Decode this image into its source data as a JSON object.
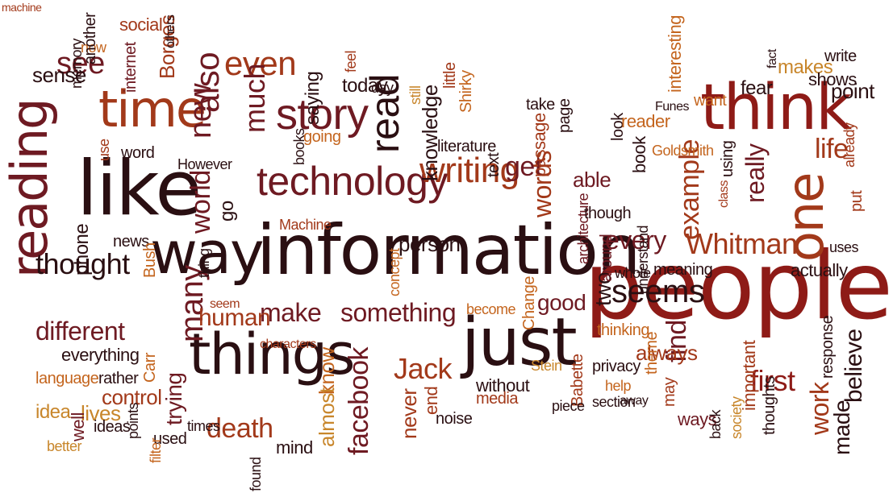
{
  "palette": {
    "dark": "#2a0f12",
    "maroon": "#6e1a22",
    "red": "#8e1b17",
    "rust": "#a2391a",
    "orange": "#c4651e",
    "tan": "#c8862b"
  },
  "words": [
    {
      "text": "information",
      "color": "dark"
    },
    {
      "text": "people",
      "color": "red"
    },
    {
      "text": "like",
      "color": "dark"
    },
    {
      "text": "way",
      "color": "dark"
    },
    {
      "text": "think",
      "color": "red"
    },
    {
      "text": "things",
      "color": "dark"
    },
    {
      "text": "reading",
      "color": "maroon"
    },
    {
      "text": "time",
      "color": "rust"
    },
    {
      "text": "just",
      "color": "dark"
    },
    {
      "text": "one",
      "color": "rust"
    },
    {
      "text": "story",
      "color": "maroon"
    },
    {
      "text": "technology",
      "color": "maroon"
    },
    {
      "text": "read",
      "color": "dark"
    },
    {
      "text": "even",
      "color": "rust"
    },
    {
      "text": "also",
      "color": "maroon"
    },
    {
      "text": "new",
      "color": "maroon"
    },
    {
      "text": "world",
      "color": "maroon"
    },
    {
      "text": "much",
      "color": "maroon"
    },
    {
      "text": "see",
      "color": "maroon"
    },
    {
      "text": "writing",
      "color": "rust"
    },
    {
      "text": "words",
      "color": "rust"
    },
    {
      "text": "get",
      "color": "maroon"
    },
    {
      "text": "life",
      "color": "rust"
    },
    {
      "text": "Whitman",
      "color": "rust"
    },
    {
      "text": "example",
      "color": "rust"
    },
    {
      "text": "really",
      "color": "maroon"
    },
    {
      "text": "seems",
      "color": "dark"
    },
    {
      "text": "every",
      "color": "maroon"
    },
    {
      "text": "many",
      "color": "maroon"
    },
    {
      "text": "thought",
      "color": "dark"
    },
    {
      "text": "make",
      "color": "maroon"
    },
    {
      "text": "something",
      "color": "maroon"
    },
    {
      "text": "human",
      "color": "rust"
    },
    {
      "text": "death",
      "color": "rust"
    },
    {
      "text": "different",
      "color": "maroon"
    },
    {
      "text": "facebook",
      "color": "maroon"
    },
    {
      "text": "Jack",
      "color": "rust"
    },
    {
      "text": "first",
      "color": "red"
    },
    {
      "text": "find",
      "color": "maroon"
    },
    {
      "text": "work",
      "color": "rust"
    },
    {
      "text": "believe",
      "color": "dark"
    },
    {
      "text": "made",
      "color": "dark"
    },
    {
      "text": "fear",
      "color": "dark"
    },
    {
      "text": "point",
      "color": "dark"
    },
    {
      "text": "makes",
      "color": "tan"
    },
    {
      "text": "two",
      "color": "dark"
    },
    {
      "text": "good",
      "color": "maroon"
    },
    {
      "text": "always",
      "color": "rust"
    },
    {
      "text": "know",
      "color": "orange"
    },
    {
      "text": "almost",
      "color": "tan"
    },
    {
      "text": "never",
      "color": "rust"
    },
    {
      "text": "end",
      "color": "rust"
    },
    {
      "text": "noise",
      "color": "dark"
    },
    {
      "text": "without",
      "color": "dark"
    },
    {
      "text": "media",
      "color": "rust"
    },
    {
      "text": "trying",
      "color": "maroon"
    },
    {
      "text": "control",
      "color": "rust"
    },
    {
      "text": "lives",
      "color": "tan"
    },
    {
      "text": "idea",
      "color": "tan"
    },
    {
      "text": "ideas",
      "color": "dark"
    },
    {
      "text": "used",
      "color": "dark"
    },
    {
      "text": "mind",
      "color": "dark"
    },
    {
      "text": "found",
      "color": "dark"
    },
    {
      "text": "well",
      "color": "maroon"
    },
    {
      "text": "better",
      "color": "tan"
    },
    {
      "text": "filter",
      "color": "orange"
    },
    {
      "text": "points",
      "color": "dark"
    },
    {
      "text": "times",
      "color": "dark"
    },
    {
      "text": "everything",
      "color": "dark"
    },
    {
      "text": "language",
      "color": "orange"
    },
    {
      "text": "rather",
      "color": "dark"
    },
    {
      "text": "Carr",
      "color": "orange"
    },
    {
      "text": "characters",
      "color": "rust"
    },
    {
      "text": "become",
      "color": "orange"
    },
    {
      "text": "Stein",
      "color": "tan"
    },
    {
      "text": "Babette",
      "color": "rust"
    },
    {
      "text": "piece",
      "color": "dark"
    },
    {
      "text": "section",
      "color": "dark"
    },
    {
      "text": "help",
      "color": "orange"
    },
    {
      "text": "theme",
      "color": "orange"
    },
    {
      "text": "thinking",
      "color": "orange"
    },
    {
      "text": "privacy",
      "color": "dark"
    },
    {
      "text": "away",
      "color": "dark"
    },
    {
      "text": "may",
      "color": "rust"
    },
    {
      "text": "ways",
      "color": "maroon"
    },
    {
      "text": "back",
      "color": "dark"
    },
    {
      "text": "society",
      "color": "tan"
    },
    {
      "text": "important",
      "color": "rust"
    },
    {
      "text": "thoughts",
      "color": "dark"
    },
    {
      "text": "response",
      "color": "dark"
    },
    {
      "text": "uses",
      "color": "dark"
    },
    {
      "text": "actually",
      "color": "dark"
    },
    {
      "text": "meaning",
      "color": "dark"
    },
    {
      "text": "whole",
      "color": "dark"
    },
    {
      "text": "understand",
      "color": "dark"
    },
    {
      "text": "around",
      "color": "maroon"
    },
    {
      "text": "architecture",
      "color": "maroon"
    },
    {
      "text": "Change",
      "color": "orange"
    },
    {
      "text": "though",
      "color": "dark"
    },
    {
      "text": "book",
      "color": "dark"
    },
    {
      "text": "look",
      "color": "dark"
    },
    {
      "text": "able",
      "color": "maroon"
    },
    {
      "text": "person",
      "color": "dark"
    },
    {
      "text": "passage",
      "color": "rust"
    },
    {
      "text": "page",
      "color": "dark"
    },
    {
      "text": "take",
      "color": "dark"
    },
    {
      "text": "text",
      "color": "dark"
    },
    {
      "text": "literature",
      "color": "dark"
    },
    {
      "text": "knowledge",
      "color": "dark"
    },
    {
      "text": "Shirky",
      "color": "orange"
    },
    {
      "text": "going",
      "color": "orange"
    },
    {
      "text": "books",
      "color": "dark"
    },
    {
      "text": "little",
      "color": "rust"
    },
    {
      "text": "still",
      "color": "tan"
    },
    {
      "text": "day",
      "color": "dark"
    },
    {
      "text": "today",
      "color": "dark"
    },
    {
      "text": "feel",
      "color": "rust"
    },
    {
      "text": "saying",
      "color": "dark"
    },
    {
      "text": "Borges",
      "color": "rust"
    },
    {
      "text": "internet",
      "color": "maroon"
    },
    {
      "text": "social",
      "color": "rust"
    },
    {
      "text": "now",
      "color": "orange"
    },
    {
      "text": "others",
      "color": "dark"
    },
    {
      "text": "memory",
      "color": "dark"
    },
    {
      "text": "another",
      "color": "dark"
    },
    {
      "text": "sense",
      "color": "dark"
    },
    {
      "text": "use",
      "color": "rust"
    },
    {
      "text": "word",
      "color": "dark"
    },
    {
      "text": "However",
      "color": "dark"
    },
    {
      "text": "go",
      "color": "dark"
    },
    {
      "text": "Machine",
      "color": "rust"
    },
    {
      "text": "news",
      "color": "dark"
    },
    {
      "text": "phone",
      "color": "dark"
    },
    {
      "text": "Bush",
      "color": "orange"
    },
    {
      "text": "thing",
      "color": "dark"
    },
    {
      "text": "seem",
      "color": "rust"
    },
    {
      "text": "concept",
      "color": "orange"
    },
    {
      "text": "reader",
      "color": "orange"
    },
    {
      "text": "Funes",
      "color": "dark"
    },
    {
      "text": "Goldsmith",
      "color": "orange"
    },
    {
      "text": "interesting",
      "color": "orange"
    },
    {
      "text": "want",
      "color": "orange"
    },
    {
      "text": "fact",
      "color": "dark"
    },
    {
      "text": "shows",
      "color": "dark"
    },
    {
      "text": "write",
      "color": "dark"
    },
    {
      "text": "using",
      "color": "dark"
    },
    {
      "text": "class",
      "color": "rust"
    },
    {
      "text": "already",
      "color": "rust"
    },
    {
      "text": "put",
      "color": "rust"
    },
    {
      "text": "machine",
      "color": "rust"
    }
  ]
}
